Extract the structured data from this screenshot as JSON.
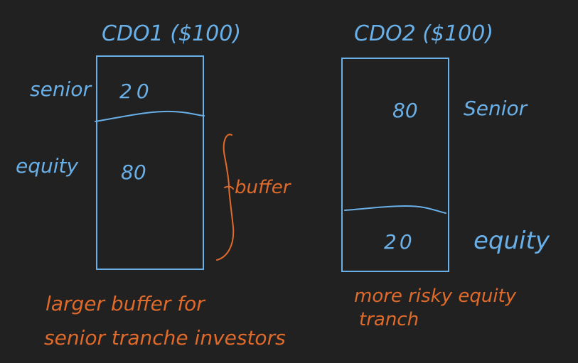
{
  "colors": {
    "background": "#212121",
    "blue": "#6ab0e8",
    "orange": "#e06a2a"
  },
  "cdo1": {
    "title": "CDO1 ($100)",
    "senior_label": "senior",
    "senior_value": "20",
    "equity_label": "equity",
    "equity_value": "80",
    "buffer_label": "buffer",
    "caption_line1": "larger buffer for",
    "caption_line2": "senior tranche investors"
  },
  "cdo2": {
    "title": "CDO2 ($100)",
    "senior_label": "Senior",
    "senior_value": "80",
    "equity_label": "equity",
    "equity_value": "20",
    "caption_line1": "more risky equity",
    "caption_line2": "tranch"
  }
}
